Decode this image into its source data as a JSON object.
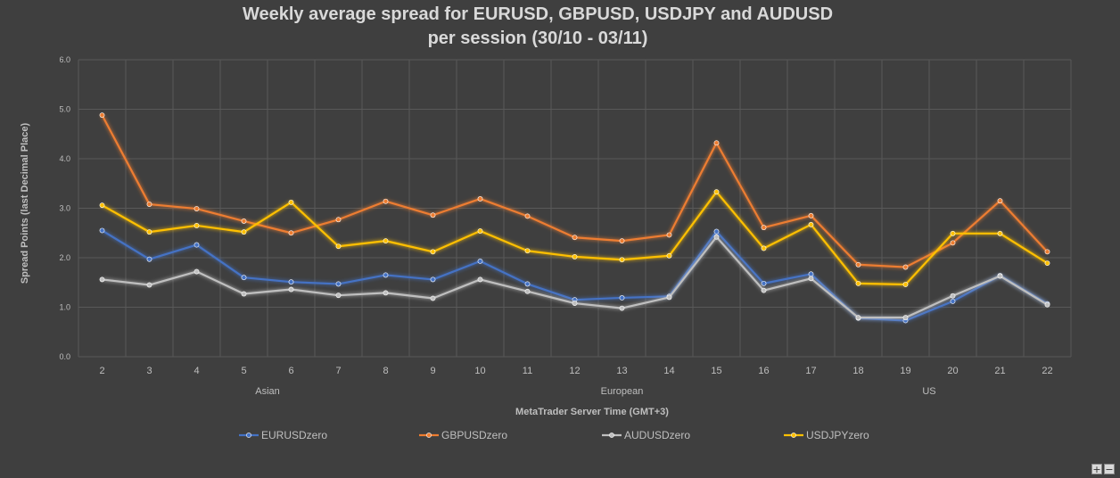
{
  "chart_data": {
    "type": "line",
    "title": [
      "Weekly average spread for EURUSD, GBPUSD, USDJPY and AUDUSD",
      "per session (30/10 - 03/11)"
    ],
    "xlabel": "MetaTrader Server Time (GMT+3)",
    "ylabel": "Spread Points  (last Decimal Place)",
    "ylim": [
      0,
      6
    ],
    "yticks": [
      "0.0",
      "1.0",
      "2.0",
      "3.0",
      "4.0",
      "5.0",
      "6.0"
    ],
    "categories": [
      "2",
      "3",
      "4",
      "5",
      "6",
      "7",
      "8",
      "9",
      "10",
      "11",
      "12",
      "13",
      "14",
      "15",
      "16",
      "17",
      "18",
      "19",
      "20",
      "21",
      "22"
    ],
    "groups": [
      {
        "label": "Asian",
        "center_index": 3.5
      },
      {
        "label": "European",
        "center_index": 11
      },
      {
        "label": "US",
        "center_index": 17.5
      }
    ],
    "grid": true,
    "legend_position": "bottom",
    "series": [
      {
        "name": "EURUSDzero",
        "color": "#4472c4",
        "values": [
          2.55,
          1.97,
          2.26,
          1.6,
          1.51,
          1.47,
          1.65,
          1.56,
          1.93,
          1.47,
          1.15,
          1.19,
          1.22,
          2.53,
          1.48,
          1.67,
          0.78,
          0.73,
          1.12,
          1.64,
          1.07
        ]
      },
      {
        "name": "GBPUSDzero",
        "color": "#ed7d31",
        "values": [
          4.88,
          3.08,
          2.99,
          2.74,
          2.5,
          2.77,
          3.14,
          2.86,
          3.19,
          2.84,
          2.41,
          2.34,
          2.46,
          4.32,
          2.61,
          2.85,
          1.86,
          1.81,
          2.3,
          3.15,
          2.12
        ]
      },
      {
        "name": "AUDUSDzero",
        "color": "#bfbfbf",
        "values": [
          1.56,
          1.45,
          1.72,
          1.27,
          1.36,
          1.24,
          1.29,
          1.18,
          1.56,
          1.32,
          1.08,
          0.98,
          1.2,
          2.42,
          1.34,
          1.58,
          0.79,
          0.79,
          1.23,
          1.63,
          1.05
        ]
      },
      {
        "name": "USDJPYzero",
        "color": "#ffc000",
        "values": [
          3.06,
          2.52,
          2.65,
          2.52,
          3.12,
          2.23,
          2.34,
          2.12,
          2.54,
          2.14,
          2.02,
          1.96,
          2.04,
          3.33,
          2.19,
          2.67,
          1.48,
          1.46,
          2.49,
          2.49,
          1.89
        ]
      }
    ]
  },
  "controls": {
    "zoom_in": "+",
    "zoom_out": "−"
  }
}
